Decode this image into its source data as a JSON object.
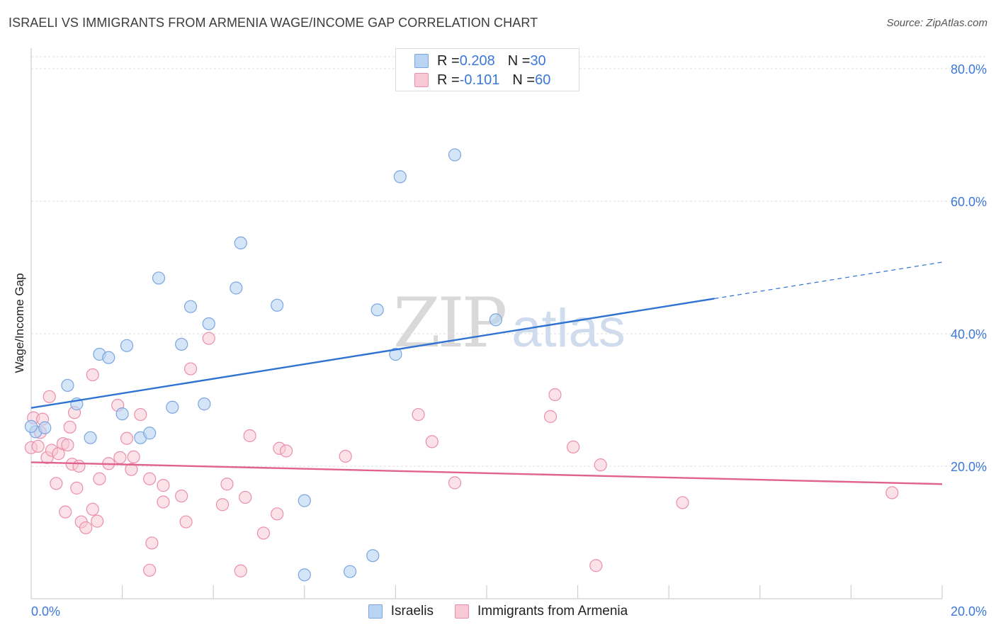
{
  "header": {
    "title": "ISRAELI VS IMMIGRANTS FROM ARMENIA WAGE/INCOME GAP CORRELATION CHART",
    "source": "Source: ZipAtlas.com"
  },
  "watermark": {
    "zip": "ZIP",
    "atlas": "atlas"
  },
  "legend": {
    "rows": [
      {
        "r_label": "R = ",
        "r_value": "0.208",
        "n_label": "N = ",
        "n_value": "30"
      },
      {
        "r_label": "R = ",
        "r_value": "-0.101",
        "n_label": "N = ",
        "n_value": "60"
      }
    ]
  },
  "bottom_legend": {
    "series1": "Israelis",
    "series2": "Immigrants from Armenia"
  },
  "colors": {
    "blue_fill": "#b9d3f3",
    "blue_stroke": "#7aa6e0",
    "blue_line": "#2f72d2",
    "pink_fill": "#f8c8d6",
    "pink_stroke": "#ea8fab",
    "pink_line": "#e0628d",
    "tick_label": "#3b78d8",
    "grid": "#dedede"
  },
  "chart_data": {
    "type": "scatter",
    "title": "ISRAELI VS IMMIGRANTS FROM ARMENIA WAGE/INCOME GAP CORRELATION CHART",
    "ylabel": "Wage/Income Gap",
    "xlabel": "",
    "xlim": [
      0,
      20
    ],
    "ylim": [
      0,
      80
    ],
    "x_tick_labels": [
      "0.0%",
      "20.0%"
    ],
    "y_ticks": [
      20,
      40,
      60,
      80
    ],
    "y_tick_labels": [
      "20.0%",
      "40.0%",
      "60.0%",
      "80.0%"
    ],
    "x_minor_ticks": [
      2,
      4,
      6,
      8,
      10,
      12,
      14,
      16,
      18,
      20
    ],
    "grid": true,
    "legend_position": "top-center",
    "series": [
      {
        "name": "Israelis",
        "r": 0.208,
        "n": 30,
        "trend": {
          "x0": 0,
          "y0": 28.8,
          "x1": 15,
          "y1": 45.3,
          "dash_to_x": 20,
          "dash_to_y": 50.8
        },
        "points": [
          [
            0.1,
            25.2
          ],
          [
            0.3,
            25.8
          ],
          [
            0.8,
            32.2
          ],
          [
            1.0,
            29.4
          ],
          [
            1.3,
            24.3
          ],
          [
            1.5,
            36.9
          ],
          [
            1.7,
            36.4
          ],
          [
            2.0,
            27.9
          ],
          [
            2.1,
            38.2
          ],
          [
            2.4,
            24.3
          ],
          [
            2.6,
            25.0
          ],
          [
            2.8,
            48.4
          ],
          [
            3.1,
            28.9
          ],
          [
            3.3,
            38.4
          ],
          [
            3.5,
            44.1
          ],
          [
            3.8,
            29.4
          ],
          [
            3.9,
            41.5
          ],
          [
            4.5,
            46.9
          ],
          [
            4.6,
            53.7
          ],
          [
            5.4,
            44.3
          ],
          [
            6.0,
            14.8
          ],
          [
            6.0,
            3.6
          ],
          [
            7.0,
            4.1
          ],
          [
            7.5,
            6.5
          ],
          [
            7.6,
            43.6
          ],
          [
            8.0,
            36.9
          ],
          [
            8.1,
            63.7
          ],
          [
            9.3,
            67.0
          ],
          [
            10.2,
            42.1
          ],
          [
            0.0,
            26.0
          ]
        ]
      },
      {
        "name": "Immigrants from Armenia",
        "r": -0.101,
        "n": 60,
        "trend": {
          "x0": 0,
          "y0": 20.6,
          "x1": 20,
          "y1": 17.3
        },
        "points": [
          [
            0.0,
            22.8
          ],
          [
            0.05,
            27.3
          ],
          [
            0.2,
            25.1
          ],
          [
            0.25,
            27.1
          ],
          [
            0.35,
            21.3
          ],
          [
            0.4,
            30.5
          ],
          [
            0.45,
            22.4
          ],
          [
            0.55,
            17.4
          ],
          [
            0.6,
            21.9
          ],
          [
            0.7,
            23.4
          ],
          [
            0.75,
            13.1
          ],
          [
            0.8,
            23.2
          ],
          [
            0.85,
            25.9
          ],
          [
            0.9,
            20.3
          ],
          [
            0.95,
            28.1
          ],
          [
            1.0,
            16.7
          ],
          [
            1.05,
            20.0
          ],
          [
            1.1,
            11.6
          ],
          [
            1.2,
            10.7
          ],
          [
            1.35,
            13.5
          ],
          [
            1.35,
            33.8
          ],
          [
            1.45,
            11.7
          ],
          [
            1.5,
            18.1
          ],
          [
            1.7,
            20.4
          ],
          [
            1.9,
            29.2
          ],
          [
            1.95,
            21.3
          ],
          [
            2.1,
            24.2
          ],
          [
            2.2,
            19.5
          ],
          [
            2.25,
            21.4
          ],
          [
            2.4,
            27.8
          ],
          [
            2.6,
            18.1
          ],
          [
            2.6,
            4.3
          ],
          [
            2.65,
            8.4
          ],
          [
            2.9,
            17.1
          ],
          [
            2.9,
            14.6
          ],
          [
            3.3,
            15.5
          ],
          [
            3.4,
            11.6
          ],
          [
            3.5,
            34.7
          ],
          [
            3.9,
            39.3
          ],
          [
            4.2,
            14.2
          ],
          [
            4.3,
            17.3
          ],
          [
            4.6,
            4.2
          ],
          [
            4.7,
            15.3
          ],
          [
            4.8,
            24.6
          ],
          [
            5.1,
            9.9
          ],
          [
            5.4,
            12.8
          ],
          [
            5.45,
            22.7
          ],
          [
            5.6,
            22.3
          ],
          [
            6.9,
            21.5
          ],
          [
            8.5,
            27.8
          ],
          [
            8.8,
            23.7
          ],
          [
            9.3,
            17.5
          ],
          [
            11.4,
            27.5
          ],
          [
            11.5,
            30.8
          ],
          [
            11.9,
            22.9
          ],
          [
            12.4,
            5.0
          ],
          [
            12.5,
            20.2
          ],
          [
            14.3,
            14.5
          ],
          [
            18.9,
            16.0
          ],
          [
            0.15,
            23.0
          ]
        ]
      }
    ]
  }
}
